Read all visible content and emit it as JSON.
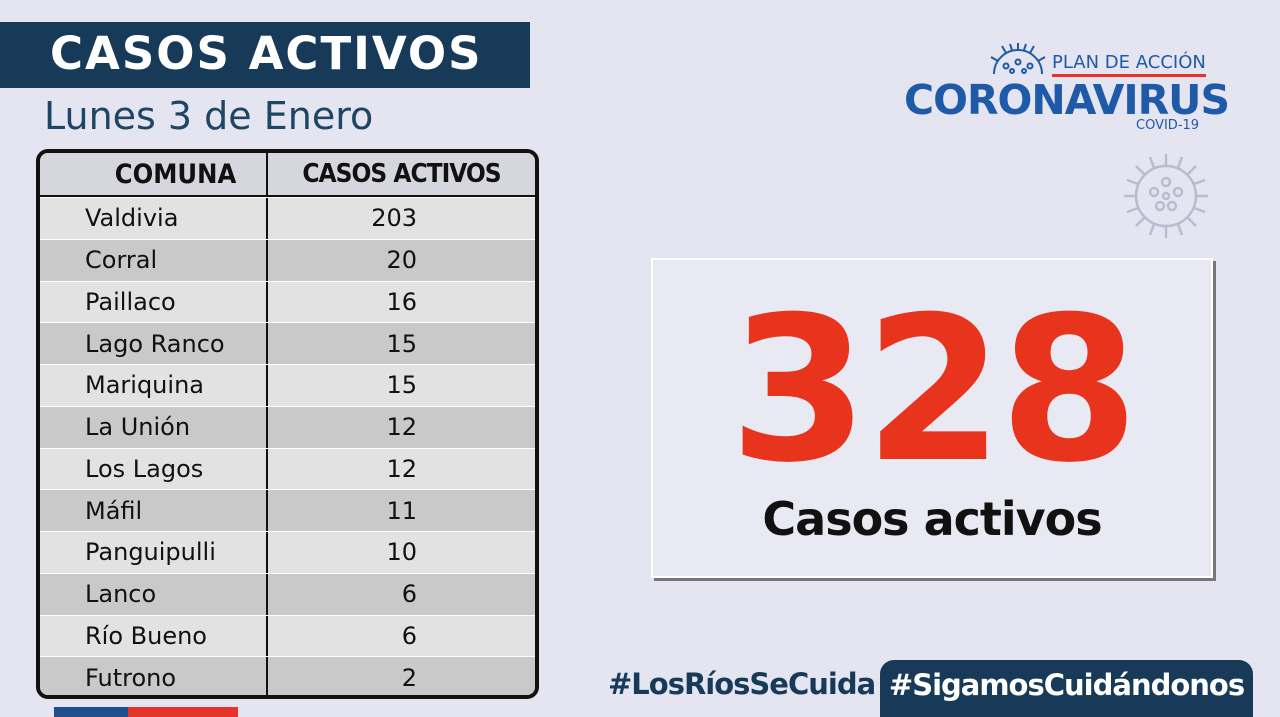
{
  "header": {
    "title": "CASOS ACTIVOS",
    "date": "Lunes 3 de Enero"
  },
  "table": {
    "headers": [
      "COMUNA",
      "CASOS ACTIVOS"
    ],
    "rows": [
      {
        "comuna": "Valdivia",
        "casos": "203"
      },
      {
        "comuna": "Corral",
        "casos": "20"
      },
      {
        "comuna": "Paillaco",
        "casos": "16"
      },
      {
        "comuna": "Lago Ranco",
        "casos": "15"
      },
      {
        "comuna": "Mariquina",
        "casos": "15"
      },
      {
        "comuna": "La Unión",
        "casos": "12"
      },
      {
        "comuna": "Los Lagos",
        "casos": "12"
      },
      {
        "comuna": "Máfil",
        "casos": "11"
      },
      {
        "comuna": "Panguipulli",
        "casos": "10"
      },
      {
        "comuna": "Lanco",
        "casos": "6"
      },
      {
        "comuna": "Río Bueno",
        "casos": "6"
      },
      {
        "comuna": "Futrono",
        "casos": "2"
      }
    ]
  },
  "logo": {
    "plan": "PLAN DE ACCIÓN",
    "name": "CORONAVIRUS",
    "sub": "COVID-19"
  },
  "total": {
    "value": "328",
    "label": "Casos activos"
  },
  "footer": {
    "hashtag_left": "#LosRíosSeCuida",
    "hashtag_right": "#SigamosCuidándonos"
  },
  "colors": {
    "navy": "#163a57",
    "accent_red": "#e8331d",
    "logo_blue": "#1f5aa8",
    "background": "#e4e5f1"
  }
}
